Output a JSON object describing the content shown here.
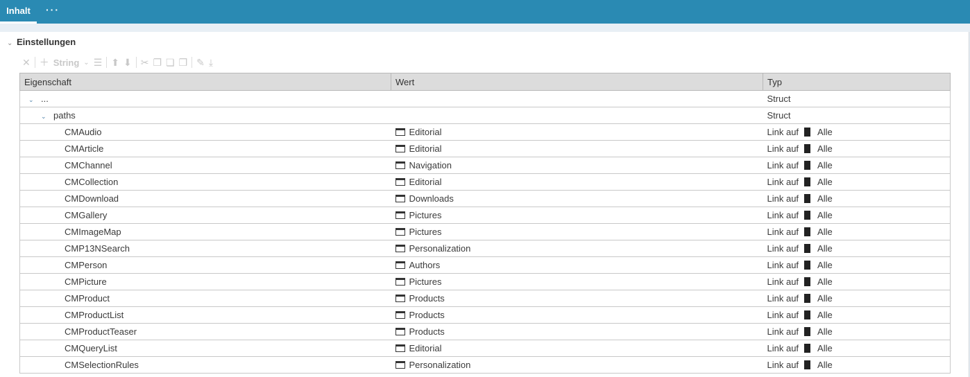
{
  "tabs": [
    {
      "label": "Inhalt"
    },
    {
      "label": "···"
    }
  ],
  "section": {
    "title": "Einstellungen"
  },
  "toolbar": {
    "type_select": "String"
  },
  "table": {
    "headers": [
      "Eigenschaft",
      "Wert",
      "Typ"
    ],
    "rows": [
      {
        "name": "...",
        "value": "",
        "type": "Struct",
        "level": 0,
        "expandable": true
      },
      {
        "name": "paths",
        "value": "",
        "type": "Struct",
        "level": 1,
        "expandable": true
      },
      {
        "name": "CMAudio",
        "value": "Editorial",
        "type": "Link auf",
        "target": "Alle",
        "level": 2
      },
      {
        "name": "CMArticle",
        "value": "Editorial",
        "type": "Link auf",
        "target": "Alle",
        "level": 2
      },
      {
        "name": "CMChannel",
        "value": "Navigation",
        "type": "Link auf",
        "target": "Alle",
        "level": 2
      },
      {
        "name": "CMCollection",
        "value": "Editorial",
        "type": "Link auf",
        "target": "Alle",
        "level": 2
      },
      {
        "name": "CMDownload",
        "value": "Downloads",
        "type": "Link auf",
        "target": "Alle",
        "level": 2
      },
      {
        "name": "CMGallery",
        "value": "Pictures",
        "type": "Link auf",
        "target": "Alle",
        "level": 2
      },
      {
        "name": "CMImageMap",
        "value": "Pictures",
        "type": "Link auf",
        "target": "Alle",
        "level": 2
      },
      {
        "name": "CMP13NSearch",
        "value": "Personalization",
        "type": "Link auf",
        "target": "Alle",
        "level": 2
      },
      {
        "name": "CMPerson",
        "value": "Authors",
        "type": "Link auf",
        "target": "Alle",
        "level": 2
      },
      {
        "name": "CMPicture",
        "value": "Pictures",
        "type": "Link auf",
        "target": "Alle",
        "level": 2
      },
      {
        "name": "CMProduct",
        "value": "Products",
        "type": "Link auf",
        "target": "Alle",
        "level": 2
      },
      {
        "name": "CMProductList",
        "value": "Products",
        "type": "Link auf",
        "target": "Alle",
        "level": 2
      },
      {
        "name": "CMProductTeaser",
        "value": "Products",
        "type": "Link auf",
        "target": "Alle",
        "level": 2
      },
      {
        "name": "CMQueryList",
        "value": "Editorial",
        "type": "Link auf",
        "target": "Alle",
        "level": 2
      },
      {
        "name": "CMSelectionRules",
        "value": "Personalization",
        "type": "Link auf",
        "target": "Alle",
        "level": 2
      }
    ]
  }
}
